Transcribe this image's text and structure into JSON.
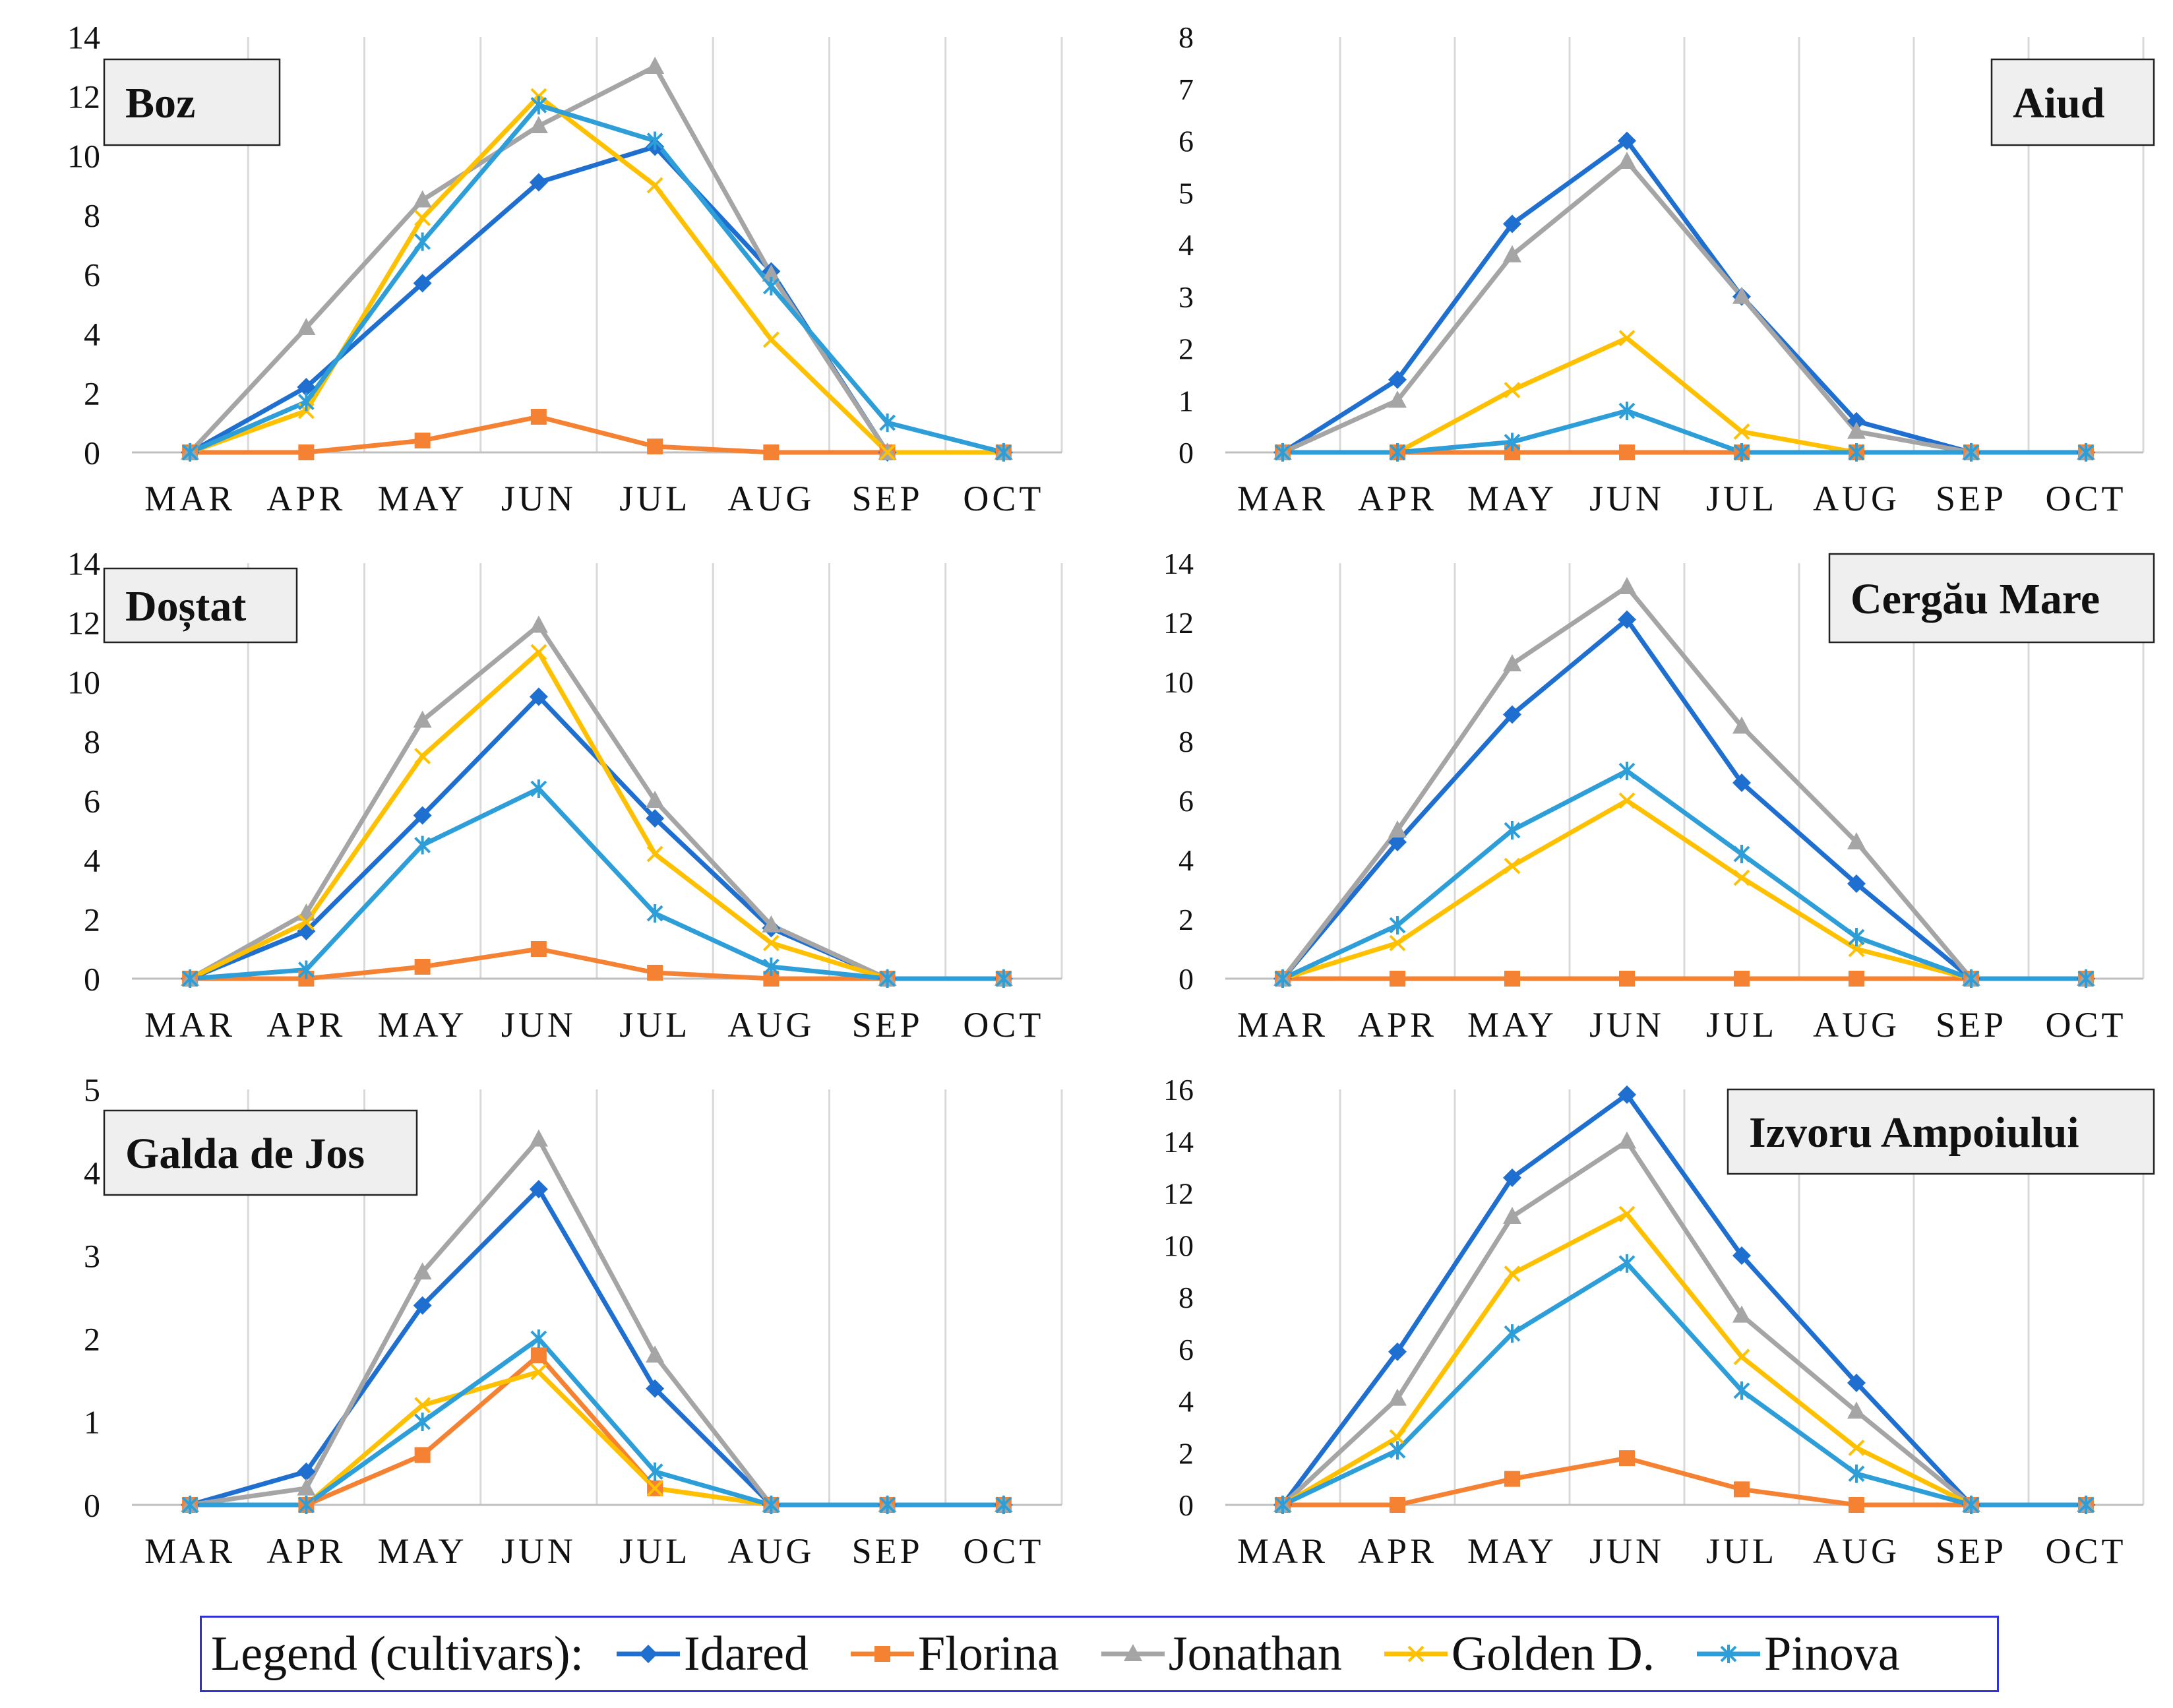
{
  "colors": {
    "Idared": "#1f6fd0",
    "Florina": "#f58232",
    "Jonathan": "#a5a5a5",
    "Golden D.": "#ffc000",
    "Pinova": "#2e9ed9",
    "grid": "#d9d9d9",
    "axis": "#bfbfbf",
    "legend_border": "#3030d8"
  },
  "legend": {
    "title": "Legend (cultivars):",
    "items": [
      {
        "name": "Idared",
        "marker": "diamond"
      },
      {
        "name": "Florina",
        "marker": "square"
      },
      {
        "name": "Jonathan",
        "marker": "triangle"
      },
      {
        "name": "Golden D.",
        "marker": "x"
      },
      {
        "name": "Pinova",
        "marker": "star"
      }
    ]
  },
  "chart_data": [
    {
      "type": "line",
      "title": "Boz",
      "title_position": "top-left",
      "categories": [
        "MAR",
        "APR",
        "MAY",
        "JUN",
        "JUL",
        "AUG",
        "SEP",
        "OCT"
      ],
      "ylim": [
        0,
        14
      ],
      "yticks": [
        0,
        2,
        4,
        6,
        8,
        10,
        12,
        14
      ],
      "series": [
        {
          "name": "Idared",
          "values": [
            0,
            2.2,
            5.7,
            9.1,
            10.3,
            6.1,
            0,
            0
          ]
        },
        {
          "name": "Florina",
          "values": [
            0,
            0,
            0.4,
            1.2,
            0.2,
            0,
            0,
            0
          ]
        },
        {
          "name": "Jonathan",
          "values": [
            0,
            4.2,
            8.5,
            11.0,
            13.0,
            6.0,
            0,
            0
          ]
        },
        {
          "name": "Golden D.",
          "values": [
            0,
            1.4,
            7.9,
            12.0,
            9.0,
            3.8,
            0,
            0
          ]
        },
        {
          "name": "Pinova",
          "values": [
            0,
            1.7,
            7.1,
            11.7,
            10.5,
            5.6,
            1.0,
            0
          ]
        }
      ]
    },
    {
      "type": "line",
      "title": "Aiud",
      "title_position": "top-right",
      "categories": [
        "MAR",
        "APR",
        "MAY",
        "JUN",
        "JUL",
        "AUG",
        "SEP",
        "OCT"
      ],
      "ylim": [
        0,
        8
      ],
      "yticks": [
        0,
        1,
        2,
        3,
        4,
        5,
        6,
        7,
        8
      ],
      "series": [
        {
          "name": "Idared",
          "values": [
            0,
            1.4,
            4.4,
            6.0,
            3.0,
            0.6,
            0,
            0
          ]
        },
        {
          "name": "Florina",
          "values": [
            0,
            0,
            0,
            0,
            0,
            0,
            0,
            0
          ]
        },
        {
          "name": "Jonathan",
          "values": [
            0,
            1.0,
            3.8,
            5.6,
            3.0,
            0.4,
            0,
            0
          ]
        },
        {
          "name": "Golden D.",
          "values": [
            0,
            0,
            1.2,
            2.2,
            0.4,
            0,
            0,
            0
          ]
        },
        {
          "name": "Pinova",
          "values": [
            0,
            0,
            0.2,
            0.8,
            0,
            0,
            0,
            0
          ]
        }
      ]
    },
    {
      "type": "line",
      "title": "Doștat",
      "title_position": "top-left",
      "categories": [
        "MAR",
        "APR",
        "MAY",
        "JUN",
        "JUL",
        "AUG",
        "SEP",
        "OCT"
      ],
      "ylim": [
        0,
        14
      ],
      "yticks": [
        0,
        2,
        4,
        6,
        8,
        10,
        12,
        14
      ],
      "series": [
        {
          "name": "Idared",
          "values": [
            0,
            1.6,
            5.5,
            9.5,
            5.4,
            1.7,
            0,
            0
          ]
        },
        {
          "name": "Florina",
          "values": [
            0,
            0,
            0.4,
            1.0,
            0.2,
            0,
            0,
            0
          ]
        },
        {
          "name": "Jonathan",
          "values": [
            0,
            2.2,
            8.7,
            11.9,
            6.0,
            1.8,
            0,
            0
          ]
        },
        {
          "name": "Golden D.",
          "values": [
            0,
            1.9,
            7.5,
            11.0,
            4.2,
            1.2,
            0,
            0
          ]
        },
        {
          "name": "Pinova",
          "values": [
            0,
            0.3,
            4.5,
            6.4,
            2.2,
            0.4,
            0,
            0
          ]
        }
      ]
    },
    {
      "type": "line",
      "title": "Cergău Mare",
      "title_position": "top-right",
      "categories": [
        "MAR",
        "APR",
        "MAY",
        "JUN",
        "JUL",
        "AUG",
        "SEP",
        "OCT"
      ],
      "ylim": [
        0,
        14
      ],
      "yticks": [
        0,
        2,
        4,
        6,
        8,
        10,
        12,
        14
      ],
      "series": [
        {
          "name": "Idared",
          "values": [
            0,
            4.6,
            8.9,
            12.1,
            6.6,
            3.2,
            0,
            0
          ]
        },
        {
          "name": "Florina",
          "values": [
            0,
            0,
            0,
            0,
            0,
            0,
            0,
            0
          ]
        },
        {
          "name": "Jonathan",
          "values": [
            0,
            5.0,
            10.6,
            13.2,
            8.5,
            4.6,
            0,
            0
          ]
        },
        {
          "name": "Golden D.",
          "values": [
            0,
            1.2,
            3.8,
            6.0,
            3.4,
            1.0,
            0,
            0
          ]
        },
        {
          "name": "Pinova",
          "values": [
            0,
            1.8,
            5.0,
            7.0,
            4.2,
            1.4,
            0,
            0
          ]
        }
      ]
    },
    {
      "type": "line",
      "title": "Galda de Jos",
      "title_position": "top-left",
      "categories": [
        "MAR",
        "APR",
        "MAY",
        "JUN",
        "JUL",
        "AUG",
        "SEP",
        "OCT"
      ],
      "ylim": [
        0,
        5
      ],
      "yticks": [
        0,
        1,
        2,
        3,
        4,
        5
      ],
      "series": [
        {
          "name": "Idared",
          "values": [
            0,
            0.4,
            2.4,
            3.8,
            1.4,
            0,
            0,
            0
          ]
        },
        {
          "name": "Florina",
          "values": [
            0,
            0,
            0.6,
            1.8,
            0.2,
            0,
            0,
            0
          ]
        },
        {
          "name": "Jonathan",
          "values": [
            0,
            0.2,
            2.8,
            4.4,
            1.8,
            0,
            0,
            0
          ]
        },
        {
          "name": "Golden D.",
          "values": [
            0,
            0,
            1.2,
            1.6,
            0.2,
            0,
            0,
            0
          ]
        },
        {
          "name": "Pinova",
          "values": [
            0,
            0,
            1.0,
            2.0,
            0.4,
            0,
            0,
            0
          ]
        }
      ]
    },
    {
      "type": "line",
      "title": "Izvoru Ampoiului",
      "title_position": "top-right",
      "categories": [
        "MAR",
        "APR",
        "MAY",
        "JUN",
        "JUL",
        "AUG",
        "SEP",
        "OCT"
      ],
      "ylim": [
        0,
        16
      ],
      "yticks": [
        0,
        2,
        4,
        6,
        8,
        10,
        12,
        14,
        16
      ],
      "series": [
        {
          "name": "Idared",
          "values": [
            0,
            5.9,
            12.6,
            15.8,
            9.6,
            4.7,
            0,
            0
          ]
        },
        {
          "name": "Florina",
          "values": [
            0,
            0,
            1.0,
            1.8,
            0.6,
            0,
            0,
            0
          ]
        },
        {
          "name": "Jonathan",
          "values": [
            0,
            4.1,
            11.1,
            14.0,
            7.3,
            3.6,
            0,
            0
          ]
        },
        {
          "name": "Golden D.",
          "values": [
            0,
            2.6,
            8.9,
            11.2,
            5.7,
            2.2,
            0,
            0
          ]
        },
        {
          "name": "Pinova",
          "values": [
            0,
            2.1,
            6.6,
            9.3,
            4.4,
            1.2,
            0,
            0
          ]
        }
      ]
    }
  ]
}
